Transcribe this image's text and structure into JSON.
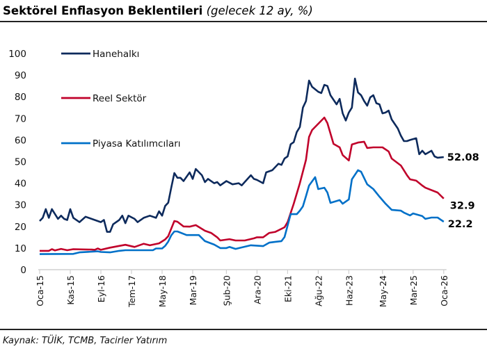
{
  "title": {
    "main": "Sektörel Enflasyon Beklentileri",
    "sub": "(gelecek 12 ay, %)"
  },
  "source": "Kaynak: TÜİK, TCMB, Tacirler Yatırım",
  "chart_data": {
    "type": "line",
    "title": "Sektörel Enflasyon Beklentileri (gelecek 12 ay, %)",
    "xlabel": "",
    "ylabel": "",
    "ylim": [
      0,
      100
    ],
    "yticks": [
      0,
      10,
      20,
      30,
      40,
      50,
      60,
      70,
      80,
      90,
      100
    ],
    "xticks": [
      {
        "label": "Oca-15",
        "date": "2015-01"
      },
      {
        "label": "Kas-15",
        "date": "2015-11"
      },
      {
        "label": "Eyl-16",
        "date": "2016-09"
      },
      {
        "label": "Tem-17",
        "date": "2017-07"
      },
      {
        "label": "May-18",
        "date": "2018-05"
      },
      {
        "label": "Mar-19",
        "date": "2019-03"
      },
      {
        "label": "Şub-20",
        "date": "2020-02"
      },
      {
        "label": "Ara-20",
        "date": "2020-12"
      },
      {
        "label": "Eki-21",
        "date": "2021-10"
      },
      {
        "label": "Ağu-22",
        "date": "2022-08"
      },
      {
        "label": "Haz-23",
        "date": "2023-06"
      },
      {
        "label": "May-24",
        "date": "2024-05"
      },
      {
        "label": "Mar-25",
        "date": "2025-03"
      },
      {
        "label": "Oca-26",
        "date": "2026-01"
      }
    ],
    "grid": false,
    "legend": "top-left",
    "series": [
      {
        "name": "Hanehalkı",
        "color": "#0d2a5c",
        "end_label": "52.08",
        "points": [
          [
            "2015-01",
            22.5
          ],
          [
            "2015-02",
            24
          ],
          [
            "2015-03",
            28
          ],
          [
            "2015-04",
            24
          ],
          [
            "2015-05",
            28
          ],
          [
            "2015-07",
            23.5
          ],
          [
            "2015-08",
            25
          ],
          [
            "2015-09",
            23.5
          ],
          [
            "2015-10",
            23
          ],
          [
            "2015-11",
            28
          ],
          [
            "2015-12",
            24
          ],
          [
            "2016-02",
            22
          ],
          [
            "2016-04",
            24.5
          ],
          [
            "2016-07",
            23
          ],
          [
            "2016-09",
            22
          ],
          [
            "2016-10",
            23
          ],
          [
            "2016-11",
            17.5
          ],
          [
            "2016-12",
            17.5
          ],
          [
            "2017-01",
            21
          ],
          [
            "2017-03",
            23
          ],
          [
            "2017-04",
            25
          ],
          [
            "2017-05",
            21.5
          ],
          [
            "2017-06",
            25
          ],
          [
            "2017-08",
            23.5
          ],
          [
            "2017-09",
            22
          ],
          [
            "2017-11",
            24
          ],
          [
            "2018-01",
            25
          ],
          [
            "2018-03",
            24
          ],
          [
            "2018-04",
            27
          ],
          [
            "2018-05",
            25
          ],
          [
            "2018-06",
            29.5
          ],
          [
            "2018-07",
            31
          ],
          [
            "2018-08",
            38
          ],
          [
            "2018-09",
            44.7
          ],
          [
            "2018-10",
            42.5
          ],
          [
            "2018-11",
            42.5
          ],
          [
            "2018-12",
            41
          ],
          [
            "2019-02",
            45
          ],
          [
            "2019-03",
            42
          ],
          [
            "2019-04",
            46.6
          ],
          [
            "2019-06",
            43.7
          ],
          [
            "2019-07",
            40.5
          ],
          [
            "2019-08",
            42
          ],
          [
            "2019-10",
            40
          ],
          [
            "2019-11",
            40.5
          ],
          [
            "2019-12",
            39
          ],
          [
            "2020-02",
            41
          ],
          [
            "2020-04",
            39.5
          ],
          [
            "2020-06",
            40
          ],
          [
            "2020-07",
            39
          ],
          [
            "2020-10",
            43.7
          ],
          [
            "2020-11",
            42
          ],
          [
            "2020-12",
            41.5
          ],
          [
            "2021-02",
            40
          ],
          [
            "2021-03",
            45
          ],
          [
            "2021-05",
            46
          ],
          [
            "2021-07",
            49
          ],
          [
            "2021-08",
            48.5
          ],
          [
            "2021-09",
            51.4
          ],
          [
            "2021-10",
            52.4
          ],
          [
            "2021-11",
            58
          ],
          [
            "2021-12",
            59
          ],
          [
            "2022-01",
            63.7
          ],
          [
            "2022-02",
            66
          ],
          [
            "2022-03",
            75
          ],
          [
            "2022-04",
            78
          ],
          [
            "2022-05",
            87.5
          ],
          [
            "2022-06",
            84.6
          ],
          [
            "2022-08",
            82.3
          ],
          [
            "2022-09",
            81.7
          ],
          [
            "2022-10",
            85.5
          ],
          [
            "2022-11",
            85
          ],
          [
            "2022-12",
            80.7
          ],
          [
            "2023-02",
            76.5
          ],
          [
            "2023-03",
            79
          ],
          [
            "2023-04",
            72.3
          ],
          [
            "2023-05",
            69
          ],
          [
            "2023-06",
            72.7
          ],
          [
            "2023-07",
            75
          ],
          [
            "2023-08",
            88.4
          ],
          [
            "2023-09",
            82
          ],
          [
            "2023-10",
            80.7
          ],
          [
            "2023-11",
            78
          ],
          [
            "2023-12",
            75.9
          ],
          [
            "2024-01",
            79.7
          ],
          [
            "2024-02",
            80.7
          ],
          [
            "2024-03",
            77
          ],
          [
            "2024-04",
            76.5
          ],
          [
            "2024-05",
            72.3
          ],
          [
            "2024-06",
            72.7
          ],
          [
            "2024-07",
            73.6
          ],
          [
            "2024-08",
            69.5
          ],
          [
            "2024-10",
            65.3
          ],
          [
            "2024-11",
            62
          ],
          [
            "2024-12",
            59.5
          ],
          [
            "2025-01",
            59.5
          ],
          [
            "2025-02",
            60
          ],
          [
            "2025-04",
            60.8
          ],
          [
            "2025-05",
            53.4
          ],
          [
            "2025-06",
            55
          ],
          [
            "2025-07",
            53.4
          ],
          [
            "2025-09",
            55
          ],
          [
            "2025-10",
            52.4
          ],
          [
            "2025-11",
            51.8
          ],
          [
            "2026-01",
            52.08
          ]
        ]
      },
      {
        "name": "Reel Sektör",
        "color": "#c0002a",
        "end_label": "32.9",
        "points": [
          [
            "2015-01",
            8.7
          ],
          [
            "2015-04",
            8.7
          ],
          [
            "2015-05",
            9.5
          ],
          [
            "2015-06",
            8.9
          ],
          [
            "2015-08",
            9.6
          ],
          [
            "2015-10",
            9
          ],
          [
            "2015-12",
            9.5
          ],
          [
            "2016-06",
            9.3
          ],
          [
            "2016-07",
            9.2
          ],
          [
            "2016-08",
            9.8
          ],
          [
            "2016-09",
            9.2
          ],
          [
            "2016-12",
            10.2
          ],
          [
            "2017-03",
            11
          ],
          [
            "2017-05",
            11.5
          ],
          [
            "2017-08",
            10.5
          ],
          [
            "2017-11",
            12
          ],
          [
            "2018-01",
            11.3
          ],
          [
            "2018-04",
            12.2
          ],
          [
            "2018-06",
            14
          ],
          [
            "2018-07",
            15.5
          ],
          [
            "2018-08",
            19
          ],
          [
            "2018-09",
            22.5
          ],
          [
            "2018-10",
            22.2
          ],
          [
            "2018-12",
            20
          ],
          [
            "2019-02",
            19.9
          ],
          [
            "2019-04",
            20.6
          ],
          [
            "2019-07",
            18
          ],
          [
            "2019-09",
            17
          ],
          [
            "2019-11",
            15
          ],
          [
            "2019-12",
            13.5
          ],
          [
            "2020-03",
            14.1
          ],
          [
            "2020-05",
            13.5
          ],
          [
            "2020-08",
            13.5
          ],
          [
            "2020-11",
            14.5
          ],
          [
            "2020-12",
            15
          ],
          [
            "2021-02",
            15
          ],
          [
            "2021-04",
            17
          ],
          [
            "2021-06",
            17.5
          ],
          [
            "2021-09",
            19.6
          ],
          [
            "2021-10",
            22
          ],
          [
            "2021-12",
            30.5
          ],
          [
            "2022-02",
            40
          ],
          [
            "2022-04",
            50.8
          ],
          [
            "2022-05",
            61.4
          ],
          [
            "2022-06",
            64.6
          ],
          [
            "2022-08",
            67.5
          ],
          [
            "2022-10",
            70.4
          ],
          [
            "2022-11",
            67.8
          ],
          [
            "2023-01",
            58.2
          ],
          [
            "2023-03",
            56.6
          ],
          [
            "2023-04",
            53
          ],
          [
            "2023-06",
            50.5
          ],
          [
            "2023-07",
            57.9
          ],
          [
            "2023-09",
            58.8
          ],
          [
            "2023-11",
            59.2
          ],
          [
            "2023-12",
            56.3
          ],
          [
            "2024-02",
            56.6
          ],
          [
            "2024-05",
            56.6
          ],
          [
            "2024-07",
            54.7
          ],
          [
            "2024-08",
            51.4
          ],
          [
            "2024-11",
            48.2
          ],
          [
            "2025-01",
            43.7
          ],
          [
            "2025-02",
            41.8
          ],
          [
            "2025-04",
            41.2
          ],
          [
            "2025-06",
            38.9
          ],
          [
            "2025-07",
            37.9
          ],
          [
            "2025-11",
            35.7
          ],
          [
            "2026-01",
            32.9
          ]
        ]
      },
      {
        "name": "Piyasa Katılımcıları",
        "color": "#0070c8",
        "end_label": "22.2",
        "points": [
          [
            "2015-01",
            7.2
          ],
          [
            "2015-12",
            7.3
          ],
          [
            "2016-02",
            8
          ],
          [
            "2016-08",
            8.5
          ],
          [
            "2016-09",
            8.2
          ],
          [
            "2016-12",
            8
          ],
          [
            "2017-03",
            8.7
          ],
          [
            "2017-05",
            9
          ],
          [
            "2018-02",
            9
          ],
          [
            "2018-03",
            9.8
          ],
          [
            "2018-05",
            9.8
          ],
          [
            "2018-06",
            11
          ],
          [
            "2018-07",
            13
          ],
          [
            "2018-08",
            15.9
          ],
          [
            "2018-09",
            17.7
          ],
          [
            "2018-10",
            17.7
          ],
          [
            "2019-01",
            16
          ],
          [
            "2019-05",
            16
          ],
          [
            "2019-07",
            13.2
          ],
          [
            "2019-10",
            11.6
          ],
          [
            "2019-12",
            10
          ],
          [
            "2020-02",
            10
          ],
          [
            "2020-03",
            10.5
          ],
          [
            "2020-05",
            9.6
          ],
          [
            "2020-07",
            10.3
          ],
          [
            "2020-10",
            11.3
          ],
          [
            "2021-02",
            10.9
          ],
          [
            "2021-04",
            12.5
          ],
          [
            "2021-06",
            12.9
          ],
          [
            "2021-08",
            13.2
          ],
          [
            "2021-09",
            15.1
          ],
          [
            "2021-11",
            25.7
          ],
          [
            "2022-01",
            25.7
          ],
          [
            "2022-02",
            27.3
          ],
          [
            "2022-03",
            29.3
          ],
          [
            "2022-04",
            34
          ],
          [
            "2022-05",
            38.9
          ],
          [
            "2022-07",
            42.8
          ],
          [
            "2022-08",
            37.3
          ],
          [
            "2022-10",
            37.9
          ],
          [
            "2022-11",
            35.7
          ],
          [
            "2022-12",
            30.9
          ],
          [
            "2023-03",
            32.2
          ],
          [
            "2023-04",
            30.5
          ],
          [
            "2023-06",
            32.5
          ],
          [
            "2023-07",
            41.8
          ],
          [
            "2023-09",
            46
          ],
          [
            "2023-10",
            45.3
          ],
          [
            "2023-12",
            39.5
          ],
          [
            "2024-02",
            37.3
          ],
          [
            "2024-04",
            33.8
          ],
          [
            "2024-06",
            30.5
          ],
          [
            "2024-08",
            27.7
          ],
          [
            "2024-11",
            27.3
          ],
          [
            "2024-12",
            26.4
          ],
          [
            "2025-02",
            25.1
          ],
          [
            "2025-03",
            26
          ],
          [
            "2025-06",
            24.8
          ],
          [
            "2025-07",
            23.5
          ],
          [
            "2025-09",
            24.1
          ],
          [
            "2025-11",
            24.1
          ],
          [
            "2026-01",
            22.2
          ]
        ]
      }
    ]
  }
}
